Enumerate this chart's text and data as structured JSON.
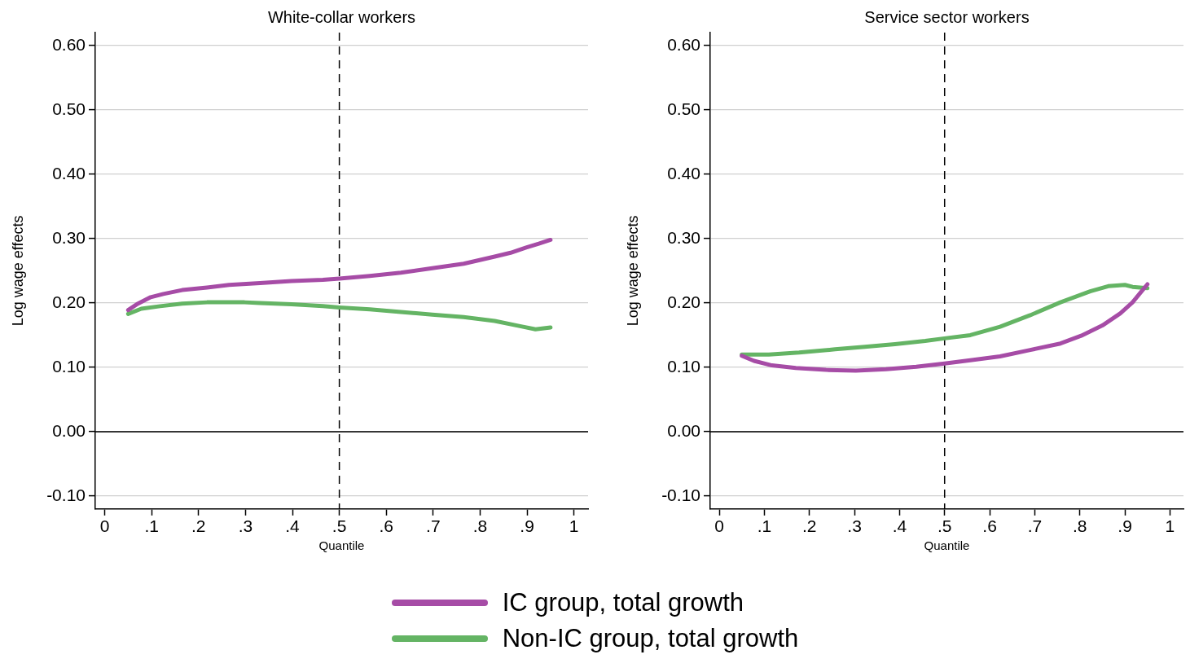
{
  "chart_data": [
    {
      "type": "line",
      "title": "White-collar workers",
      "xlabel": "Quantile",
      "ylabel": "Log wage effects",
      "xlim": [
        -0.02,
        1.03
      ],
      "ylim": [
        -0.12,
        0.62
      ],
      "xticks": [
        {
          "value": 0,
          "label": "0"
        },
        {
          "value": 0.1,
          "label": ".1"
        },
        {
          "value": 0.2,
          "label": ".2"
        },
        {
          "value": 0.3,
          "label": ".3"
        },
        {
          "value": 0.4,
          "label": ".4"
        },
        {
          "value": 0.5,
          "label": ".5"
        },
        {
          "value": 0.6,
          "label": ".6"
        },
        {
          "value": 0.7,
          "label": ".7"
        },
        {
          "value": 0.8,
          "label": ".8"
        },
        {
          "value": 0.9,
          "label": ".9"
        },
        {
          "value": 1,
          "label": "1"
        }
      ],
      "yticks": [
        {
          "value": -0.1,
          "label": "-0.10"
        },
        {
          "value": 0,
          "label": "0.00"
        },
        {
          "value": 0.1,
          "label": "0.10"
        },
        {
          "value": 0.2,
          "label": "0.20"
        },
        {
          "value": 0.3,
          "label": "0.30"
        },
        {
          "value": 0.4,
          "label": "0.40"
        },
        {
          "value": 0.5,
          "label": "0.50"
        },
        {
          "value": 0.6,
          "label": "0.60"
        }
      ],
      "grid": "y",
      "legend": "bottom",
      "marker": "none",
      "line_style": "solid",
      "ref_lines": [
        {
          "axis": "y",
          "value": 0,
          "color": "#000000",
          "line_style": "solid"
        },
        {
          "axis": "x",
          "value": 0.5,
          "color": "#000000",
          "line_style": "dashed"
        }
      ],
      "series": [
        {
          "name": "IC group, total growth",
          "color": "#a64ca6",
          "x": [
            0.05,
            0.071,
            0.098,
            0.125,
            0.165,
            0.218,
            0.265,
            0.331,
            0.398,
            0.465,
            0.5,
            0.565,
            0.631,
            0.698,
            0.765,
            0.831,
            0.865,
            0.898,
            0.925,
            0.95
          ],
          "values": [
            0.189,
            0.199,
            0.209,
            0.214,
            0.22,
            0.224,
            0.228,
            0.231,
            0.234,
            0.236,
            0.238,
            0.242,
            0.247,
            0.254,
            0.261,
            0.272,
            0.278,
            0.286,
            0.292,
            0.298
          ]
        },
        {
          "name": "Non-IC group, total growth",
          "color": "#64b464",
          "x": [
            0.05,
            0.078,
            0.118,
            0.165,
            0.218,
            0.298,
            0.331,
            0.398,
            0.465,
            0.5,
            0.565,
            0.631,
            0.698,
            0.765,
            0.831,
            0.885,
            0.918,
            0.95
          ],
          "values": [
            0.183,
            0.191,
            0.195,
            0.199,
            0.201,
            0.201,
            0.2,
            0.198,
            0.195,
            0.193,
            0.19,
            0.186,
            0.182,
            0.178,
            0.172,
            0.164,
            0.159,
            0.162
          ]
        }
      ]
    },
    {
      "type": "line",
      "title": "Service sector workers",
      "xlabel": "Quantile",
      "ylabel": "Log wage effects",
      "xlim": [
        -0.02,
        1.03
      ],
      "ylim": [
        -0.12,
        0.62
      ],
      "xticks": [
        {
          "value": 0,
          "label": "0"
        },
        {
          "value": 0.1,
          "label": ".1"
        },
        {
          "value": 0.2,
          "label": ".2"
        },
        {
          "value": 0.3,
          "label": ".3"
        },
        {
          "value": 0.4,
          "label": ".4"
        },
        {
          "value": 0.5,
          "label": ".5"
        },
        {
          "value": 0.6,
          "label": ".6"
        },
        {
          "value": 0.7,
          "label": ".7"
        },
        {
          "value": 0.8,
          "label": ".8"
        },
        {
          "value": 0.9,
          "label": ".9"
        },
        {
          "value": 1,
          "label": "1"
        }
      ],
      "yticks": [
        {
          "value": -0.1,
          "label": "-0.10"
        },
        {
          "value": 0,
          "label": "0.00"
        },
        {
          "value": 0.1,
          "label": "0.10"
        },
        {
          "value": 0.2,
          "label": "0.20"
        },
        {
          "value": 0.3,
          "label": "0.30"
        },
        {
          "value": 0.4,
          "label": "0.40"
        },
        {
          "value": 0.5,
          "label": "0.50"
        },
        {
          "value": 0.6,
          "label": "0.60"
        }
      ],
      "grid": "y",
      "legend": "bottom",
      "marker": "none",
      "line_style": "solid",
      "ref_lines": [
        {
          "axis": "y",
          "value": 0,
          "color": "#000000",
          "line_style": "solid"
        },
        {
          "axis": "x",
          "value": 0.5,
          "color": "#000000",
          "line_style": "dashed"
        }
      ],
      "series": [
        {
          "name": "IC group, total growth",
          "color": "#a64ca6",
          "x": [
            0.05,
            0.077,
            0.117,
            0.17,
            0.237,
            0.303,
            0.37,
            0.437,
            0.5,
            0.557,
            0.623,
            0.69,
            0.757,
            0.803,
            0.85,
            0.89,
            0.917,
            0.937,
            0.95
          ],
          "values": [
            0.118,
            0.11,
            0.103,
            0.099,
            0.096,
            0.095,
            0.097,
            0.101,
            0.106,
            0.111,
            0.117,
            0.127,
            0.137,
            0.149,
            0.165,
            0.184,
            0.201,
            0.218,
            0.229
          ]
        },
        {
          "name": "Non-IC group, total growth",
          "color": "#64b464",
          "x": [
            0.05,
            0.11,
            0.177,
            0.257,
            0.323,
            0.39,
            0.457,
            0.5,
            0.557,
            0.623,
            0.69,
            0.757,
            0.823,
            0.863,
            0.9,
            0.917,
            0.95
          ],
          "values": [
            0.12,
            0.12,
            0.123,
            0.128,
            0.132,
            0.136,
            0.141,
            0.145,
            0.15,
            0.163,
            0.181,
            0.201,
            0.218,
            0.226,
            0.228,
            0.225,
            0.223
          ]
        }
      ]
    }
  ]
}
